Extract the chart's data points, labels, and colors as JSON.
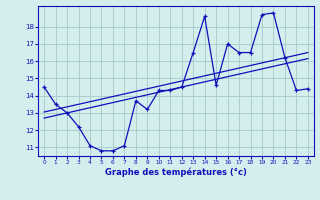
{
  "x": [
    0,
    1,
    2,
    3,
    4,
    5,
    6,
    7,
    8,
    9,
    10,
    11,
    12,
    13,
    14,
    15,
    16,
    17,
    18,
    19,
    20,
    21,
    22,
    23
  ],
  "temp_line": [
    14.5,
    13.5,
    13.0,
    12.2,
    11.1,
    10.8,
    10.8,
    11.1,
    13.7,
    13.2,
    14.3,
    14.3,
    14.5,
    16.5,
    18.6,
    14.6,
    17.0,
    16.5,
    16.5,
    18.7,
    18.8,
    16.2,
    14.3,
    14.4
  ],
  "trend1": [
    12.7,
    12.85,
    13.0,
    13.15,
    13.3,
    13.45,
    13.6,
    13.75,
    13.9,
    14.05,
    14.2,
    14.35,
    14.5,
    14.65,
    14.8,
    14.95,
    15.1,
    15.25,
    15.4,
    15.55,
    15.7,
    15.85,
    16.0,
    16.15
  ],
  "trend2": [
    13.05,
    13.2,
    13.35,
    13.5,
    13.65,
    13.8,
    13.95,
    14.1,
    14.25,
    14.4,
    14.55,
    14.7,
    14.85,
    15.0,
    15.15,
    15.3,
    15.45,
    15.6,
    15.75,
    15.9,
    16.05,
    16.2,
    16.35,
    16.5
  ],
  "line_color": "#1010bb",
  "bg_color": "#d4eeee",
  "grid_color": "#aacece",
  "xlabel": "Graphe des températures (°c)",
  "xlim": [
    -0.5,
    23.5
  ],
  "ylim": [
    10.5,
    19.2
  ],
  "yticks": [
    11,
    12,
    13,
    14,
    15,
    16,
    17,
    18
  ],
  "xticks": [
    0,
    1,
    2,
    3,
    4,
    5,
    6,
    7,
    8,
    9,
    10,
    11,
    12,
    13,
    14,
    15,
    16,
    17,
    18,
    19,
    20,
    21,
    22,
    23
  ]
}
